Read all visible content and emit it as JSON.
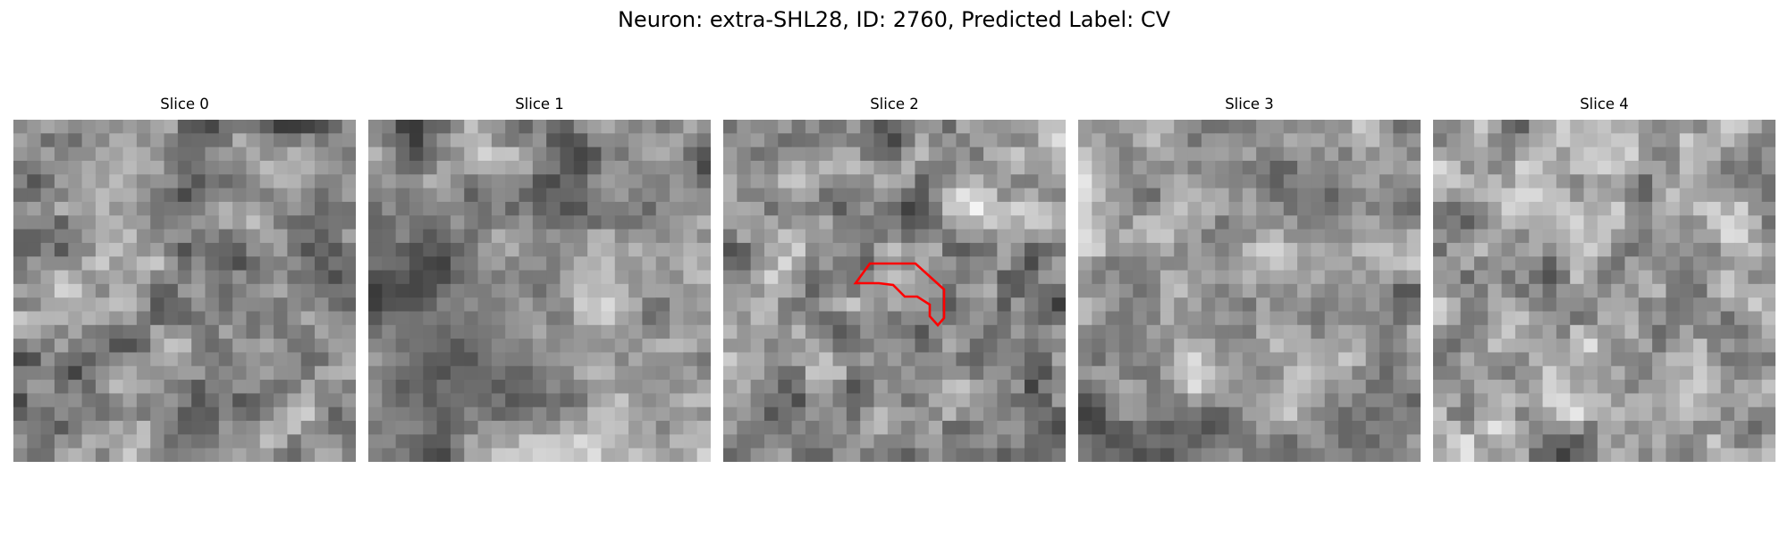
{
  "figure": {
    "title": "Neuron: extra-SHL28, ID: 2760, Predicted Label: CV"
  },
  "panels": [
    {
      "label": "Slice 0"
    },
    {
      "label": "Slice 1"
    },
    {
      "label": "Slice 2"
    },
    {
      "label": "Slice 3"
    },
    {
      "label": "Slice 4"
    }
  ],
  "colors": {
    "contour": "#ff0000",
    "background": "#ffffff",
    "colormap": "grayscale"
  }
}
